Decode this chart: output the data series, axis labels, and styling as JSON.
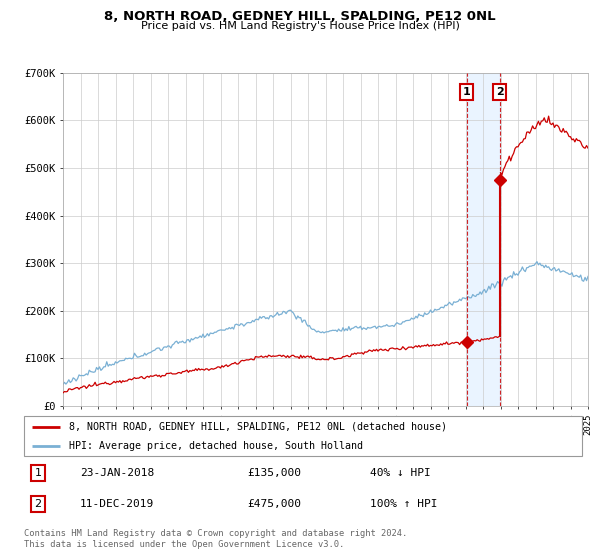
{
  "title": "8, NORTH ROAD, GEDNEY HILL, SPALDING, PE12 0NL",
  "subtitle": "Price paid vs. HM Land Registry's House Price Index (HPI)",
  "legend_line1": "8, NORTH ROAD, GEDNEY HILL, SPALDING, PE12 0NL (detached house)",
  "legend_line2": "HPI: Average price, detached house, South Holland",
  "annotation1_date": "23-JAN-2018",
  "annotation1_price": "£135,000",
  "annotation1_hpi": "40% ↓ HPI",
  "annotation2_date": "11-DEC-2019",
  "annotation2_price": "£475,000",
  "annotation2_hpi": "100% ↑ HPI",
  "footer": "Contains HM Land Registry data © Crown copyright and database right 2024.\nThis data is licensed under the Open Government Licence v3.0.",
  "red_color": "#cc0000",
  "blue_color": "#7ab0d4",
  "shading_color": "#ddeeff",
  "bg_color": "#f0f0f0",
  "ylim": [
    0,
    700000
  ],
  "yticks": [
    0,
    100000,
    200000,
    300000,
    400000,
    500000,
    600000,
    700000
  ],
  "ytick_labels": [
    "£0",
    "£100K",
    "£200K",
    "£300K",
    "£400K",
    "£500K",
    "£600K",
    "£700K"
  ],
  "sale1_year": 2018.07,
  "sale1_price": 135000,
  "sale2_year": 2019.95,
  "sale2_price": 475000,
  "xstart": 1995,
  "xend": 2025
}
